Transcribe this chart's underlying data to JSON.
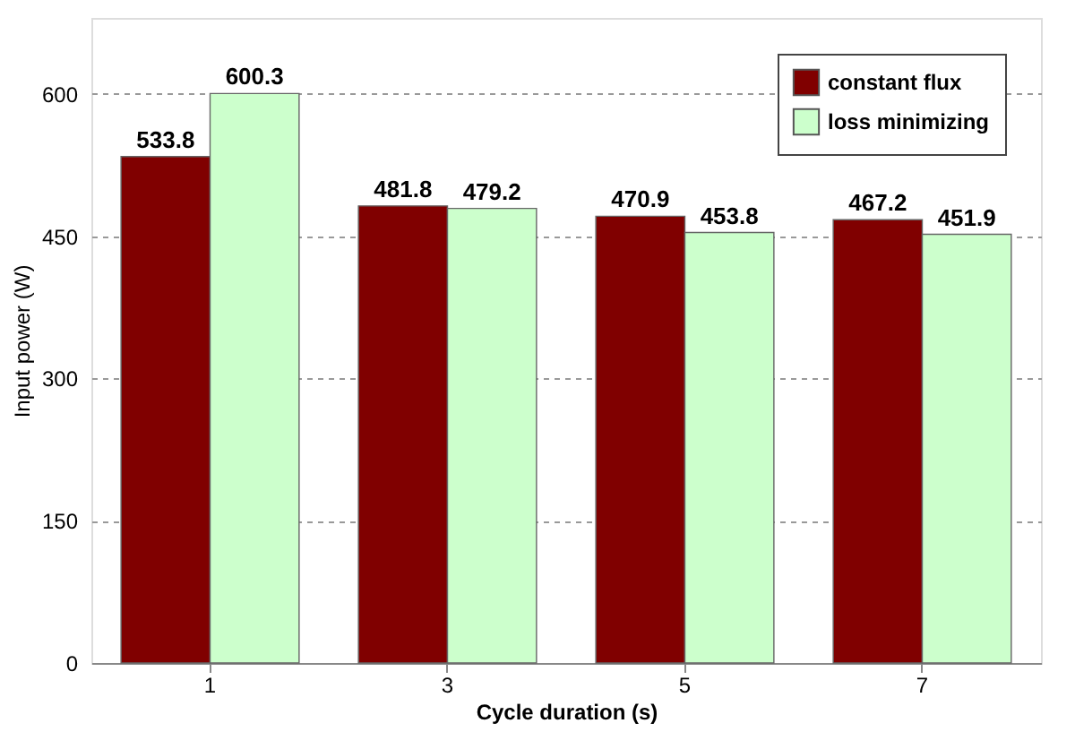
{
  "chart_data": {
    "type": "bar",
    "xlabel": "Cycle duration (s)",
    "ylabel": "Input power (W)",
    "categories": [
      "1",
      "3",
      "5",
      "7"
    ],
    "series": [
      {
        "name": "constant flux",
        "color": "#800000",
        "values": [
          533.8,
          481.8,
          470.9,
          467.2
        ]
      },
      {
        "name": "loss minimizing",
        "color": "#ccffcc",
        "values": [
          600.3,
          479.2,
          453.8,
          451.9
        ]
      }
    ],
    "ylim": [
      0,
      680
    ],
    "yticks": [
      0,
      150,
      300,
      450,
      600
    ],
    "grid": "y",
    "legend": "top right",
    "data_labels": true
  }
}
